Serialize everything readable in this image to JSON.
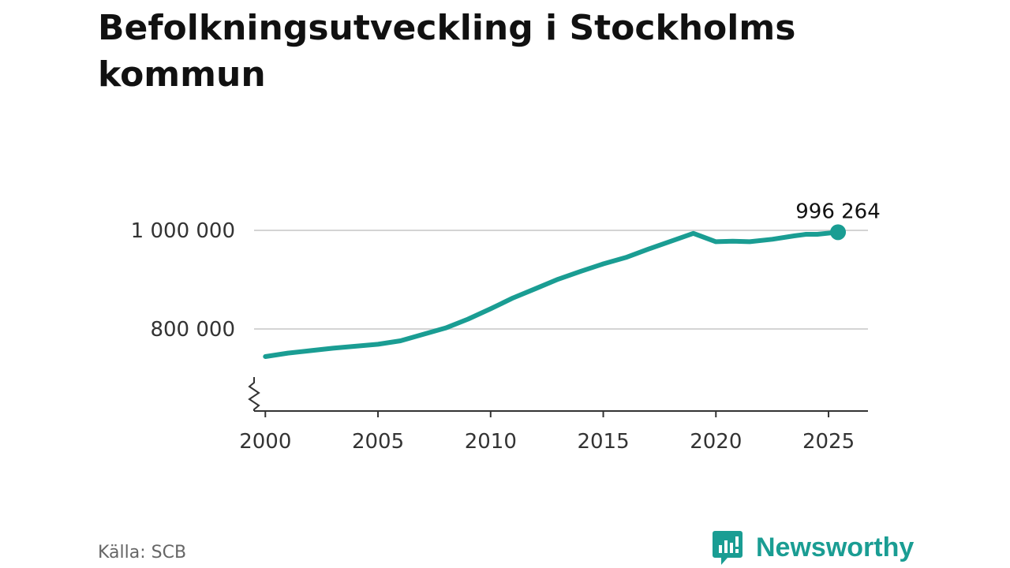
{
  "chart_data": {
    "type": "line",
    "title": "Befolkningsutveckling i Stockholms kommun",
    "xlabel": "",
    "ylabel": "",
    "xlim": [
      1999.5,
      2026.75
    ],
    "ylim": [
      630000,
      1010000
    ],
    "x_ticks": [
      2000,
      2005,
      2010,
      2015,
      2020,
      2025
    ],
    "x_tick_labels": [
      "2000",
      "2005",
      "2010",
      "2015",
      "2020",
      "2025"
    ],
    "y_ticks": [
      800000,
      1000000
    ],
    "y_tick_labels": [
      "800 000",
      "1 000 000"
    ],
    "axis_break": true,
    "grid": "horizontal",
    "series": [
      {
        "color": "#1a9d93",
        "x": [
          2000,
          2001,
          2002,
          2003,
          2004,
          2005,
          2006,
          2007,
          2008,
          2009,
          2010,
          2011,
          2012,
          2013,
          2014,
          2015,
          2016,
          2017,
          2018,
          2019,
          2020,
          2020.75,
          2021.5,
          2022.5,
          2023.5,
          2024,
          2024.5,
          2025.42
        ],
        "y": [
          744000,
          751000,
          756000,
          761000,
          765000,
          769000,
          776000,
          789000,
          802000,
          820000,
          841000,
          863000,
          882000,
          901000,
          917000,
          932000,
          945000,
          962000,
          978000,
          994000,
          977000,
          978000,
          977000,
          982000,
          989000,
          992000,
          992000,
          996264
        ]
      }
    ],
    "end_label": "996 264"
  },
  "source": "Källa: SCB",
  "brand": {
    "name": "Newsworthy",
    "color": "#1a9d93",
    "icon": "newsworthy-logo-icon"
  }
}
